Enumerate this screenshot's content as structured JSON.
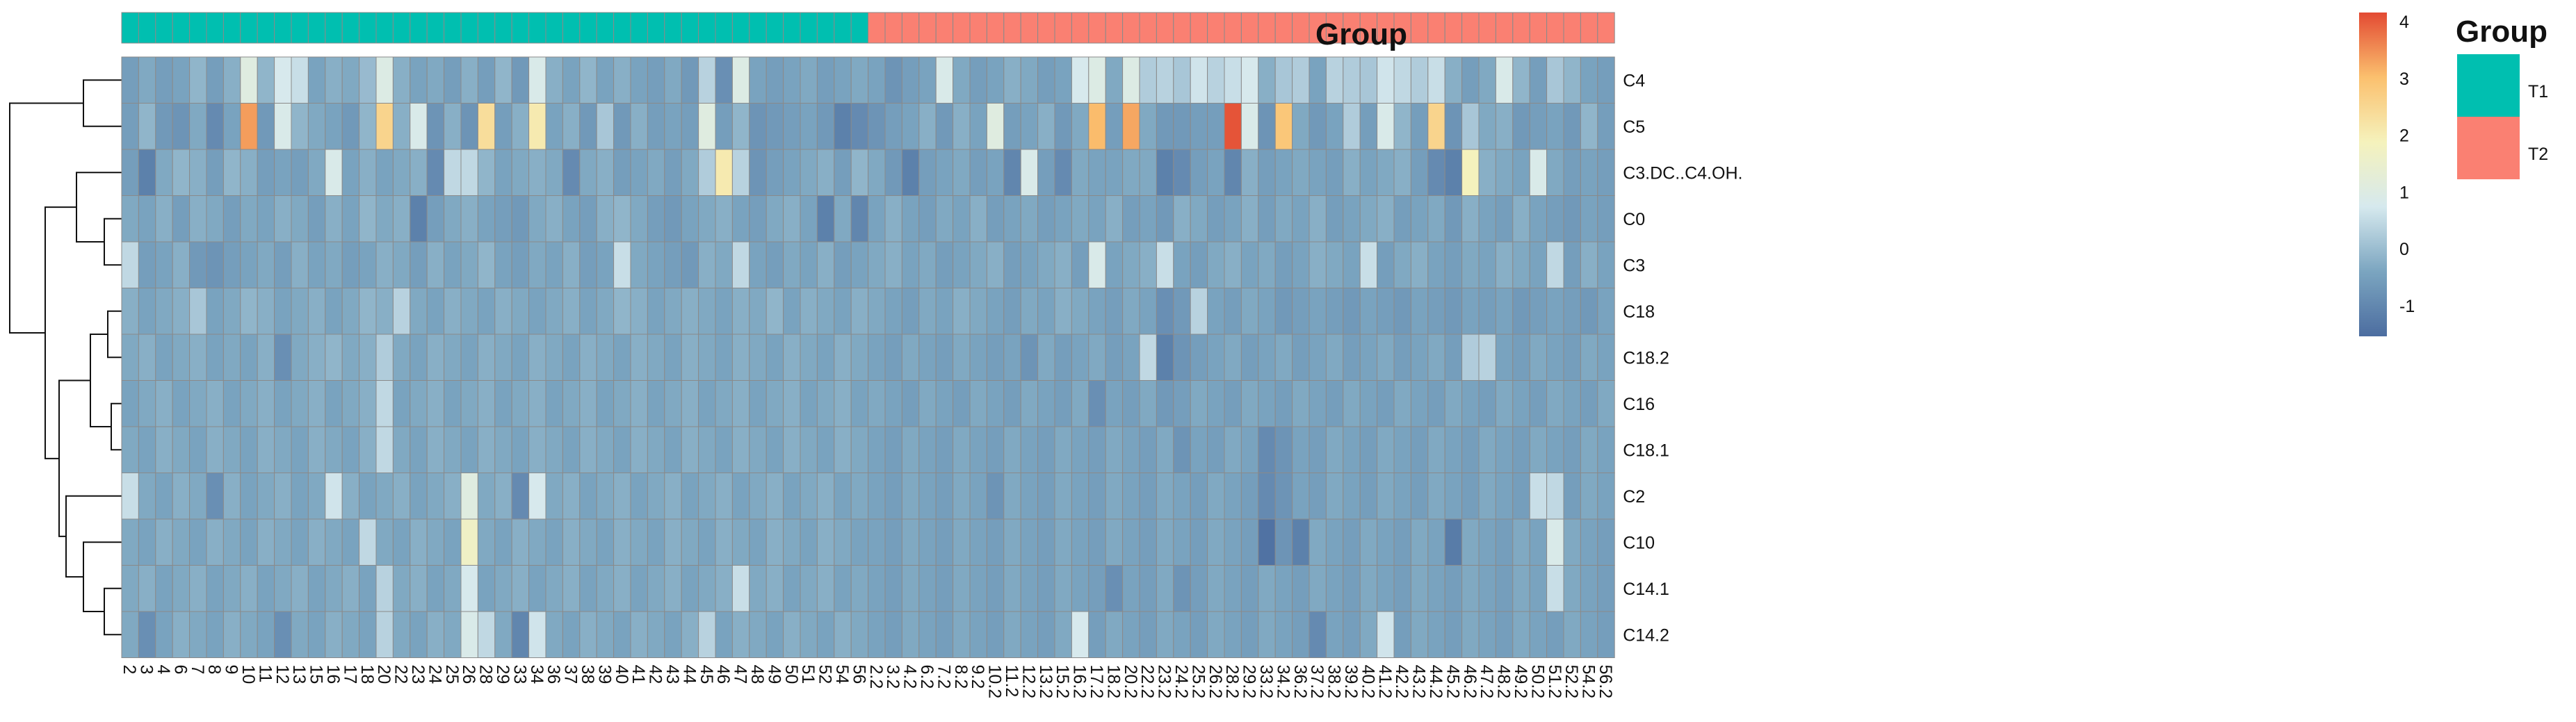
{
  "chart_data": {
    "type": "heatmap",
    "title": "",
    "group_track_label": "Group",
    "legend": {
      "title": "Group",
      "entries": [
        {
          "name": "T1",
          "color": "#00BFB0"
        },
        {
          "name": "T2",
          "color": "#FA8072"
        }
      ]
    },
    "colorbar": {
      "ticks": [
        "4",
        "3",
        "2",
        "1",
        "0",
        "-1"
      ],
      "min": -1.6,
      "max": 4.1,
      "stops": [
        "#4C6DA0",
        "#7BA5C0",
        "#D6E9EE",
        "#F5F2BC",
        "#FBC06E",
        "#E34A33"
      ]
    },
    "rows": [
      "C4",
      "C5",
      "C3.DC..C4.OH.",
      "C0",
      "C3",
      "C18",
      "C18.2",
      "C16",
      "C18.1",
      "C2",
      "C10",
      "C14.1",
      "C14.2"
    ],
    "columns": [
      "2",
      "3",
      "4",
      "6",
      "7",
      "8",
      "9",
      "10",
      "11",
      "12",
      "13",
      "15",
      "16",
      "17",
      "18",
      "20",
      "22",
      "23",
      "24",
      "25",
      "26",
      "28",
      "29",
      "33",
      "34",
      "36",
      "37",
      "38",
      "39",
      "40",
      "41",
      "42",
      "43",
      "44",
      "45",
      "46",
      "47",
      "48",
      "49",
      "50",
      "51",
      "52",
      "54",
      "56",
      "2.2",
      "3.2",
      "4.2",
      "6.2",
      "7.2",
      "8.2",
      "9.2",
      "10.2",
      "11.2",
      "12.2",
      "13.2",
      "15.2",
      "16.2",
      "17.2",
      "18.2",
      "20.2",
      "22.2",
      "23.2",
      "24.2",
      "25.2",
      "26.2",
      "28.2",
      "29.2",
      "33.2",
      "34.2",
      "36.2",
      "37.2",
      "38.2",
      "39.2",
      "40.2",
      "41.2",
      "42.2",
      "43.2",
      "44.2",
      "45.2",
      "46.2",
      "47.2",
      "48.2",
      "49.2",
      "50.2",
      "51.2",
      "52.2",
      "54.2",
      "56.2"
    ],
    "column_groups": [
      "T1",
      "T1",
      "T1",
      "T1",
      "T1",
      "T1",
      "T1",
      "T1",
      "T1",
      "T1",
      "T1",
      "T1",
      "T1",
      "T1",
      "T1",
      "T1",
      "T1",
      "T1",
      "T1",
      "T1",
      "T1",
      "T1",
      "T1",
      "T1",
      "T1",
      "T1",
      "T1",
      "T1",
      "T1",
      "T1",
      "T1",
      "T1",
      "T1",
      "T1",
      "T1",
      "T1",
      "T1",
      "T1",
      "T1",
      "T1",
      "T1",
      "T1",
      "T1",
      "T1",
      "T2",
      "T2",
      "T2",
      "T2",
      "T2",
      "T2",
      "T2",
      "T2",
      "T2",
      "T2",
      "T2",
      "T2",
      "T2",
      "T2",
      "T2",
      "T2",
      "T2",
      "T2",
      "T2",
      "T2",
      "T2",
      "T2",
      "T2",
      "T2",
      "T2",
      "T2",
      "T2",
      "T2",
      "T2",
      "T2",
      "T2",
      "T2",
      "T2",
      "T2",
      "T2",
      "T2",
      "T2",
      "T2",
      "T2",
      "T2",
      "T2",
      "T2",
      "T2",
      "T2"
    ],
    "values": [
      [
        -0.6,
        -0.4,
        -0.6,
        -0.5,
        -0.2,
        -0.6,
        -0.3,
        1.0,
        -0.2,
        0.7,
        0.5,
        -0.5,
        -0.3,
        -0.4,
        -0.1,
        0.9,
        -0.3,
        -0.5,
        -0.4,
        -0.6,
        -0.3,
        -0.6,
        -0.2,
        -0.7,
        0.8,
        -0.3,
        -0.5,
        -0.2,
        -0.5,
        -0.3,
        -0.5,
        -0.6,
        -0.4,
        -0.7,
        0.3,
        -0.9,
        0.9,
        -0.5,
        -0.6,
        -0.5,
        -0.4,
        -0.6,
        -0.5,
        -0.4,
        -0.5,
        -0.8,
        -0.6,
        -0.5,
        0.8,
        -0.4,
        -0.6,
        -0.5,
        -0.3,
        -0.4,
        -0.6,
        -0.5,
        0.7,
        0.9,
        -0.4,
        0.9,
        0.2,
        0.3,
        0.1,
        0.6,
        0.3,
        0.5,
        0.7,
        -0.3,
        0.1,
        0.2,
        -0.5,
        0.3,
        0.2,
        0.1,
        0.6,
        0.4,
        0.2,
        0.5,
        -0.3,
        -0.6,
        -0.4,
        0.8,
        -0.2,
        -0.6,
        0.1,
        -0.2,
        -0.5,
        -0.6
      ],
      [
        -0.6,
        -0.2,
        -0.7,
        -0.8,
        -0.4,
        -1.0,
        -0.5,
        3.3,
        -0.7,
        0.8,
        -0.2,
        -0.4,
        -0.5,
        -0.7,
        -0.2,
        2.5,
        -0.3,
        0.8,
        -0.8,
        -0.3,
        -0.8,
        2.3,
        -0.6,
        -0.3,
        2.0,
        -0.5,
        -0.3,
        -0.7,
        0.1,
        -0.7,
        -0.3,
        -0.6,
        -0.5,
        -0.6,
        1.0,
        -0.6,
        -0.2,
        -0.8,
        -0.7,
        -0.6,
        -0.5,
        -0.7,
        -1.2,
        -1.0,
        -0.8,
        -0.6,
        -0.5,
        -0.3,
        -0.7,
        -0.3,
        -0.5,
        1.0,
        -0.6,
        -0.5,
        -0.3,
        -0.7,
        -0.4,
        3.0,
        -0.6,
        3.2,
        -0.4,
        -0.7,
        -0.7,
        -0.6,
        -0.6,
        4.0,
        0.8,
        -0.8,
        2.8,
        -0.4,
        -0.7,
        -0.5,
        0.2,
        -0.6,
        0.8,
        -0.2,
        -0.6,
        2.5,
        -0.8,
        0.1,
        -0.4,
        -0.3,
        -0.7,
        -0.6,
        -0.5,
        -0.7,
        -0.2,
        -0.6
      ],
      [
        -0.6,
        -1.2,
        -0.4,
        -0.2,
        -0.3,
        -0.6,
        -0.2,
        -0.3,
        -0.6,
        -0.5,
        -0.6,
        -0.4,
        0.8,
        -0.5,
        -0.3,
        -0.5,
        -0.4,
        -0.3,
        -1.0,
        0.4,
        0.4,
        -0.2,
        -0.5,
        -0.4,
        -0.3,
        -0.4,
        -1.0,
        -0.4,
        -0.3,
        -0.6,
        -0.5,
        -0.4,
        -0.6,
        -0.4,
        0.2,
        2.0,
        0.3,
        -0.8,
        -0.6,
        -0.5,
        -0.4,
        -0.3,
        -0.6,
        -0.2,
        -0.4,
        -0.7,
        -1.2,
        -0.6,
        -0.5,
        -0.4,
        -0.6,
        -0.5,
        -1.1,
        0.8,
        -0.6,
        -1.0,
        -0.4,
        -0.5,
        -0.5,
        -0.4,
        -0.4,
        -1.2,
        -1.0,
        -0.6,
        -0.5,
        -1.1,
        -0.3,
        -0.6,
        -0.5,
        -0.4,
        -0.5,
        -0.6,
        -0.3,
        -0.5,
        -0.4,
        -0.3,
        -0.6,
        -1.0,
        -1.2,
        1.8,
        -0.3,
        -0.4,
        -0.5,
        0.8,
        -0.4,
        -0.6,
        -0.5,
        -0.6
      ],
      [
        -0.4,
        -0.5,
        -0.3,
        -0.6,
        -0.3,
        -0.4,
        -0.6,
        -0.4,
        -0.5,
        -0.3,
        -0.4,
        -0.6,
        -0.3,
        -0.5,
        -0.2,
        -0.4,
        -0.3,
        -1.2,
        -0.6,
        -0.4,
        -0.3,
        -0.5,
        -0.6,
        -0.7,
        -0.4,
        -0.3,
        -0.5,
        -0.6,
        -0.3,
        -0.2,
        -0.4,
        -0.6,
        -0.7,
        -0.5,
        -0.4,
        -0.3,
        -0.5,
        -0.6,
        -0.4,
        -0.3,
        -0.5,
        -1.2,
        -0.4,
        -1.1,
        -0.5,
        -0.3,
        -0.5,
        -0.6,
        -0.4,
        -0.5,
        -0.3,
        -0.6,
        -0.5,
        -0.4,
        -0.6,
        -0.5,
        -0.4,
        -0.5,
        -0.3,
        -0.6,
        -0.5,
        -0.7,
        -0.3,
        -0.4,
        -0.6,
        -0.5,
        -0.3,
        -0.6,
        -0.4,
        -0.5,
        -0.3,
        -0.6,
        -0.5,
        -0.4,
        -0.3,
        -0.6,
        -0.5,
        -0.4,
        -0.7,
        -0.3,
        -0.5,
        -0.6,
        -0.3,
        -0.5,
        -0.6,
        -0.7,
        -0.5,
        -0.6
      ],
      [
        0.4,
        -0.6,
        -0.5,
        -0.3,
        -0.7,
        -0.8,
        -0.6,
        -0.5,
        -0.4,
        -0.6,
        -0.3,
        -0.5,
        -0.4,
        -0.6,
        -0.5,
        -0.3,
        -0.4,
        -0.6,
        -0.3,
        -0.5,
        -0.4,
        -0.2,
        -0.5,
        -0.6,
        -0.4,
        -0.5,
        -0.3,
        -0.6,
        -0.5,
        0.5,
        -0.4,
        -0.5,
        -0.6,
        -0.7,
        -0.3,
        -0.4,
        0.4,
        -0.5,
        -0.6,
        -0.4,
        -0.5,
        -0.3,
        -0.6,
        -0.5,
        -0.4,
        -0.3,
        -0.5,
        -0.4,
        -0.6,
        -0.5,
        -0.4,
        -0.3,
        -0.6,
        -0.5,
        -0.4,
        -0.3,
        -0.6,
        0.8,
        -0.5,
        -0.4,
        -0.3,
        0.5,
        -0.5,
        -0.6,
        -0.4,
        -0.3,
        -0.5,
        -0.4,
        -0.6,
        -0.5,
        -0.3,
        -0.4,
        -0.5,
        0.5,
        -0.6,
        -0.4,
        -0.3,
        -0.5,
        -0.6,
        -0.4,
        -0.5,
        -0.3,
        -0.4,
        -0.5,
        0.4,
        -0.6,
        -0.3,
        -0.5
      ],
      [
        -0.3,
        -0.5,
        -0.4,
        -0.3,
        0.1,
        -0.5,
        -0.4,
        -0.2,
        -0.3,
        -0.5,
        -0.4,
        -0.3,
        -0.5,
        -0.4,
        -0.2,
        -0.3,
        0.3,
        -0.4,
        -0.5,
        -0.3,
        -0.4,
        -0.5,
        -0.3,
        -0.4,
        -0.5,
        -0.4,
        -0.3,
        -0.5,
        -0.4,
        -0.2,
        -0.3,
        -0.5,
        -0.4,
        -0.3,
        -0.4,
        -0.5,
        -0.3,
        -0.4,
        -0.2,
        -0.5,
        -0.3,
        -0.4,
        -0.5,
        -0.3,
        -0.4,
        -0.5,
        -0.6,
        -0.4,
        -0.5,
        -0.3,
        -0.4,
        -0.5,
        -0.6,
        -0.4,
        -0.5,
        -0.3,
        -0.4,
        -0.5,
        -0.6,
        -0.4,
        -0.5,
        -0.9,
        -0.7,
        0.3,
        -0.5,
        -0.6,
        -0.4,
        -0.5,
        -0.7,
        -0.6,
        -0.5,
        -0.6,
        -0.7,
        -0.5,
        -0.6,
        -0.7,
        -0.5,
        -0.6,
        -0.7,
        -0.5,
        -0.6,
        -0.5,
        -0.7,
        -0.6,
        -0.5,
        -0.6,
        -0.7,
        -0.5
      ],
      [
        -0.4,
        -0.3,
        -0.5,
        -0.4,
        -0.3,
        -0.5,
        -0.4,
        -0.5,
        -0.3,
        -0.9,
        -0.4,
        -0.3,
        -0.2,
        -0.4,
        -0.3,
        0.2,
        -0.4,
        -0.5,
        -0.3,
        -0.4,
        -0.5,
        -0.3,
        -0.4,
        -0.5,
        -0.3,
        -0.4,
        -0.5,
        -0.3,
        -0.4,
        -0.5,
        -0.3,
        -0.4,
        -0.5,
        -0.3,
        -0.4,
        -0.5,
        -0.3,
        -0.4,
        -0.5,
        -0.3,
        -0.4,
        -0.5,
        -0.3,
        -0.4,
        -0.5,
        -0.6,
        -0.4,
        -0.5,
        -0.6,
        -0.4,
        -0.5,
        -0.6,
        -0.5,
        -0.8,
        -0.4,
        -0.6,
        -0.5,
        -0.4,
        -0.6,
        -0.5,
        0.4,
        -1.2,
        -0.8,
        -0.6,
        -0.5,
        -0.4,
        -0.6,
        -0.5,
        -0.4,
        -0.6,
        -0.5,
        -0.4,
        -0.6,
        -0.5,
        -0.4,
        -0.6,
        -0.5,
        -0.4,
        -0.6,
        0.2,
        0.3,
        -0.5,
        -0.6,
        -0.4,
        -0.5,
        -0.6,
        -0.4,
        -0.5
      ],
      [
        -0.5,
        -0.4,
        -0.3,
        -0.5,
        -0.4,
        -0.3,
        -0.5,
        -0.4,
        -0.3,
        -0.5,
        -0.4,
        -0.3,
        -0.5,
        -0.4,
        -0.3,
        0.4,
        -0.5,
        -0.4,
        -0.3,
        -0.5,
        -0.4,
        -0.3,
        -0.5,
        -0.4,
        -0.3,
        -0.5,
        -0.4,
        -0.3,
        -0.5,
        -0.4,
        -0.3,
        -0.5,
        -0.4,
        -0.3,
        -0.5,
        -0.4,
        -0.3,
        -0.5,
        -0.4,
        -0.3,
        -0.5,
        -0.4,
        -0.3,
        -0.5,
        -0.4,
        -0.5,
        -0.6,
        -0.4,
        -0.5,
        -0.6,
        -0.4,
        -0.5,
        -0.6,
        -0.4,
        -0.5,
        -0.6,
        -0.4,
        -0.9,
        -0.5,
        -0.6,
        -0.4,
        -0.7,
        -0.6,
        -0.4,
        -0.5,
        -0.6,
        -0.4,
        -0.5,
        -0.6,
        -0.4,
        -0.5,
        -0.6,
        -0.4,
        -0.5,
        -0.6,
        -0.4,
        -0.5,
        -0.6,
        -0.4,
        -0.5,
        -0.6,
        -0.4,
        -0.5,
        -0.6,
        -0.4,
        -0.5,
        -0.6,
        -0.4
      ],
      [
        -0.4,
        -0.5,
        -0.3,
        -0.4,
        -0.5,
        -0.3,
        -0.4,
        -0.5,
        -0.3,
        -0.4,
        -0.5,
        -0.3,
        -0.4,
        -0.5,
        -0.3,
        0.4,
        -0.4,
        -0.5,
        -0.3,
        -0.4,
        -0.5,
        -0.3,
        -0.4,
        -0.5,
        -0.3,
        -0.4,
        -0.5,
        -0.3,
        -0.4,
        -0.5,
        -0.3,
        -0.4,
        -0.5,
        -0.3,
        -0.4,
        -0.5,
        -0.3,
        -0.4,
        -0.5,
        -0.3,
        -0.4,
        -0.5,
        -0.3,
        -0.4,
        -0.5,
        -0.6,
        -0.4,
        -0.5,
        -0.6,
        -0.4,
        -0.5,
        -0.6,
        -0.4,
        -0.5,
        -0.6,
        -0.4,
        -0.5,
        -0.6,
        -0.4,
        -0.5,
        -0.6,
        -0.4,
        -0.8,
        -0.5,
        -0.6,
        -0.4,
        -0.5,
        -1.0,
        -0.8,
        -0.5,
        -0.6,
        -0.4,
        -0.5,
        -0.6,
        -0.4,
        -0.5,
        -0.6,
        -0.4,
        -0.5,
        -0.6,
        -0.4,
        -0.5,
        -0.6,
        -0.4,
        -0.5,
        -0.6,
        -0.4,
        -0.5
      ],
      [
        0.5,
        -0.4,
        -0.5,
        -0.3,
        -0.4,
        -0.9,
        -0.3,
        -0.5,
        -0.4,
        -0.3,
        -0.5,
        -0.4,
        0.6,
        -0.3,
        -0.5,
        -0.4,
        -0.3,
        -0.5,
        -0.4,
        -0.3,
        1.0,
        -0.4,
        -0.3,
        -1.0,
        0.7,
        -0.4,
        -0.3,
        -0.5,
        -0.4,
        -0.3,
        -0.5,
        -0.4,
        -0.3,
        -0.5,
        -0.4,
        -0.3,
        -0.5,
        -0.4,
        -0.3,
        -0.5,
        -0.4,
        -0.3,
        -0.5,
        -0.4,
        -0.5,
        -0.6,
        -0.4,
        -0.5,
        -0.6,
        -0.4,
        -0.5,
        -0.8,
        -0.4,
        -0.5,
        -0.6,
        -0.4,
        -0.5,
        -0.6,
        -0.4,
        -0.5,
        -0.6,
        -0.4,
        -0.5,
        -0.6,
        -0.4,
        -0.5,
        -0.6,
        -1.0,
        -0.8,
        -0.5,
        -0.6,
        -0.4,
        -0.5,
        -0.6,
        -0.4,
        -0.5,
        -0.6,
        -0.4,
        -0.5,
        -0.6,
        -0.4,
        -0.5,
        -0.6,
        0.5,
        0.4,
        -0.6,
        -0.4,
        -0.5
      ],
      [
        -0.4,
        -0.5,
        -0.3,
        -0.4,
        -0.5,
        -0.3,
        -0.4,
        -0.5,
        -0.3,
        -0.4,
        -0.5,
        -0.3,
        -0.4,
        -0.5,
        0.4,
        -0.4,
        -0.5,
        -0.3,
        -0.4,
        -0.5,
        1.6,
        -0.4,
        -0.5,
        -0.3,
        -0.4,
        -0.5,
        -0.3,
        -0.4,
        -0.5,
        -0.3,
        -0.4,
        -0.5,
        -0.3,
        -0.4,
        -0.5,
        -0.3,
        -0.4,
        -0.5,
        -0.3,
        -0.4,
        -0.5,
        -0.3,
        -0.4,
        -0.5,
        -0.5,
        -0.6,
        -0.4,
        -0.5,
        -0.6,
        -0.4,
        -0.5,
        -0.6,
        -0.4,
        -0.5,
        -0.6,
        -0.4,
        -0.5,
        -0.6,
        -0.4,
        -0.5,
        -0.6,
        -0.4,
        -0.5,
        -0.6,
        -0.4,
        -0.5,
        -0.6,
        -1.5,
        -0.8,
        -1.2,
        -0.4,
        -0.5,
        -0.6,
        -0.4,
        -0.5,
        -0.6,
        -0.4,
        -0.5,
        -1.3,
        -0.4,
        -0.5,
        -0.6,
        -0.4,
        -0.5,
        0.8,
        -0.4,
        -0.5,
        -0.6
      ],
      [
        -0.4,
        -0.3,
        -0.5,
        -0.4,
        -0.3,
        -0.5,
        -0.4,
        -0.3,
        -0.5,
        -0.4,
        -0.3,
        -0.5,
        -0.4,
        -0.3,
        -0.5,
        0.3,
        -0.4,
        -0.3,
        -0.5,
        -0.4,
        0.7,
        -0.5,
        -0.4,
        -0.3,
        -0.5,
        -0.4,
        -0.3,
        -0.5,
        -0.4,
        -0.3,
        -0.5,
        -0.4,
        -0.3,
        -0.5,
        -0.4,
        -0.3,
        0.5,
        -0.4,
        -0.3,
        -0.5,
        -0.4,
        -0.3,
        -0.5,
        -0.4,
        -0.5,
        -0.6,
        -0.4,
        -0.5,
        -0.6,
        -0.4,
        -0.5,
        -0.6,
        -0.4,
        -0.5,
        -0.6,
        -0.4,
        -0.5,
        -0.6,
        -0.9,
        -0.5,
        -0.6,
        -0.4,
        -0.8,
        -0.6,
        -0.4,
        -0.5,
        -0.6,
        -0.4,
        -0.5,
        -0.6,
        -0.4,
        -0.5,
        -0.6,
        -0.4,
        -0.5,
        -0.6,
        -0.4,
        -0.5,
        -0.6,
        -0.4,
        -0.5,
        -0.6,
        -0.4,
        -0.5,
        0.5,
        -0.4,
        -0.5,
        -0.6
      ],
      [
        -0.4,
        -0.9,
        -0.5,
        -0.3,
        -0.4,
        -0.5,
        -0.3,
        -0.4,
        -0.5,
        -0.9,
        -0.4,
        -0.5,
        -0.3,
        -0.4,
        -0.5,
        0.3,
        -0.4,
        -0.5,
        -0.3,
        -0.4,
        0.8,
        0.4,
        -0.4,
        -1.1,
        0.6,
        -0.4,
        -0.5,
        -0.3,
        -0.4,
        -0.5,
        -0.3,
        -0.4,
        -0.5,
        -0.3,
        0.3,
        -0.5,
        -0.3,
        -0.4,
        -0.5,
        -0.3,
        -0.4,
        -0.5,
        -0.3,
        -0.4,
        -0.5,
        -0.6,
        -0.4,
        -0.5,
        -0.6,
        -0.4,
        -0.5,
        -0.6,
        -0.4,
        -0.5,
        -0.6,
        -0.4,
        0.7,
        -0.6,
        -0.4,
        -0.5,
        -0.6,
        -0.4,
        -0.5,
        -0.6,
        -0.4,
        -0.5,
        -0.6,
        -0.4,
        -0.5,
        -0.6,
        -1.0,
        -0.5,
        -0.6,
        -0.4,
        0.6,
        -0.6,
        -0.4,
        -0.5,
        -0.6,
        -0.4,
        -0.5,
        -0.6,
        -0.4,
        -0.5,
        -0.6,
        -0.4,
        -0.5,
        -0.6
      ]
    ]
  }
}
